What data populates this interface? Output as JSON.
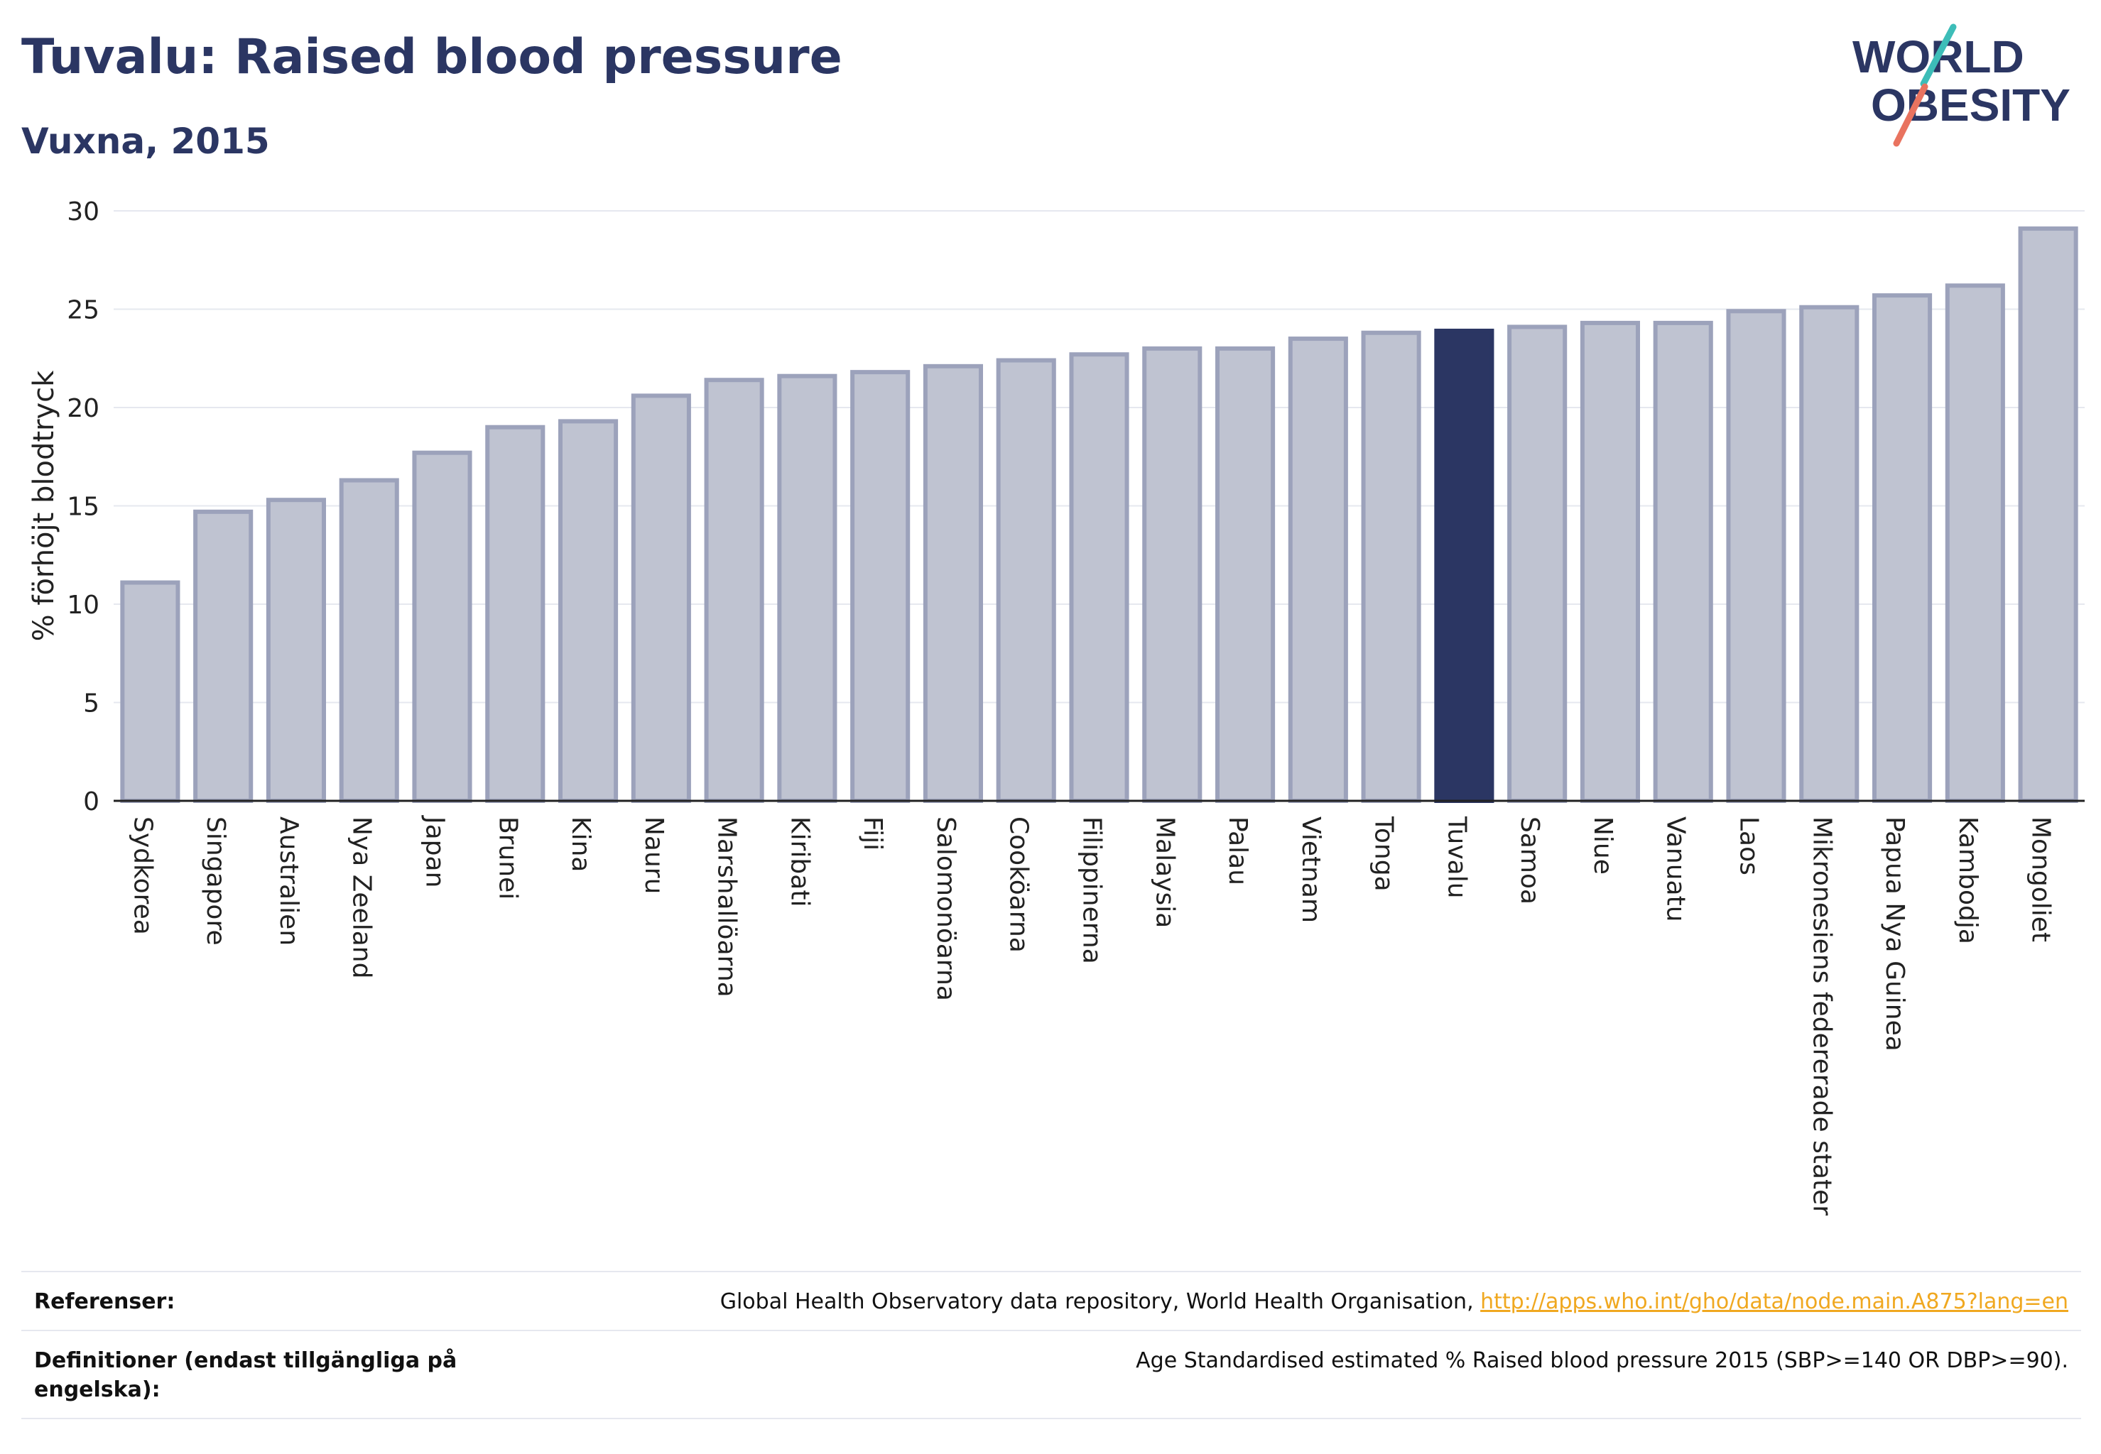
{
  "header": {
    "title": "Tuvalu: Raised blood pressure",
    "subtitle": "Vuxna, 2015"
  },
  "logo": {
    "line1": "WORLD",
    "line2": "OBESITY",
    "colors": {
      "text": "#2b3663",
      "slash_top": "#3dbdb8",
      "slash_bottom": "#e9735f"
    }
  },
  "chart_data": {
    "type": "bar",
    "ylabel": "% förhöjt blodtryck",
    "xlabel": "",
    "ylim": [
      0,
      30
    ],
    "yticks": [
      0,
      5,
      10,
      15,
      20,
      25,
      30
    ],
    "grid": true,
    "highlight": "Tuvalu",
    "colors": {
      "bar": "#bfc3d1",
      "bar_edge": "#9ca2bb",
      "highlight": "#2b3663",
      "grid": "#e6e8ef",
      "axis": "#222222"
    },
    "categories": [
      "Sydkorea",
      "Singapore",
      "Australien",
      "Nya Zeeland",
      "Japan",
      "Brunei",
      "Kina",
      "Nauru",
      "Marshallöarna",
      "Kiribati",
      "Fiji",
      "Salomonöarna",
      "Cooköarna",
      "Filippinerna",
      "Malaysia",
      "Palau",
      "Vietnam",
      "Tonga",
      "Tuvalu",
      "Samoa",
      "Niue",
      "Vanuatu",
      "Laos",
      "Mikronesiens federerade stater",
      "Papua Nya Guinea",
      "Kambodja",
      "Mongoliet"
    ],
    "values": [
      11.1,
      14.7,
      15.3,
      16.3,
      17.7,
      19.0,
      19.3,
      20.6,
      21.4,
      21.6,
      21.8,
      22.1,
      22.4,
      22.7,
      23.0,
      23.0,
      23.5,
      23.8,
      23.9,
      24.1,
      24.3,
      24.3,
      24.9,
      25.1,
      25.7,
      26.2,
      29.1
    ]
  },
  "footer": {
    "references_label": "Referenser:",
    "references_text": "Global Health Observatory data repository, World Health Organisation, ",
    "references_link": "http://apps.who.int/gho/data/node.main.A875?lang=en",
    "definitions_label": "Definitioner (endast tillgängliga på engelska):",
    "definitions_text": "Age Standardised estimated % Raised blood pressure 2015 (SBP>=140 OR DBP>=90)."
  }
}
